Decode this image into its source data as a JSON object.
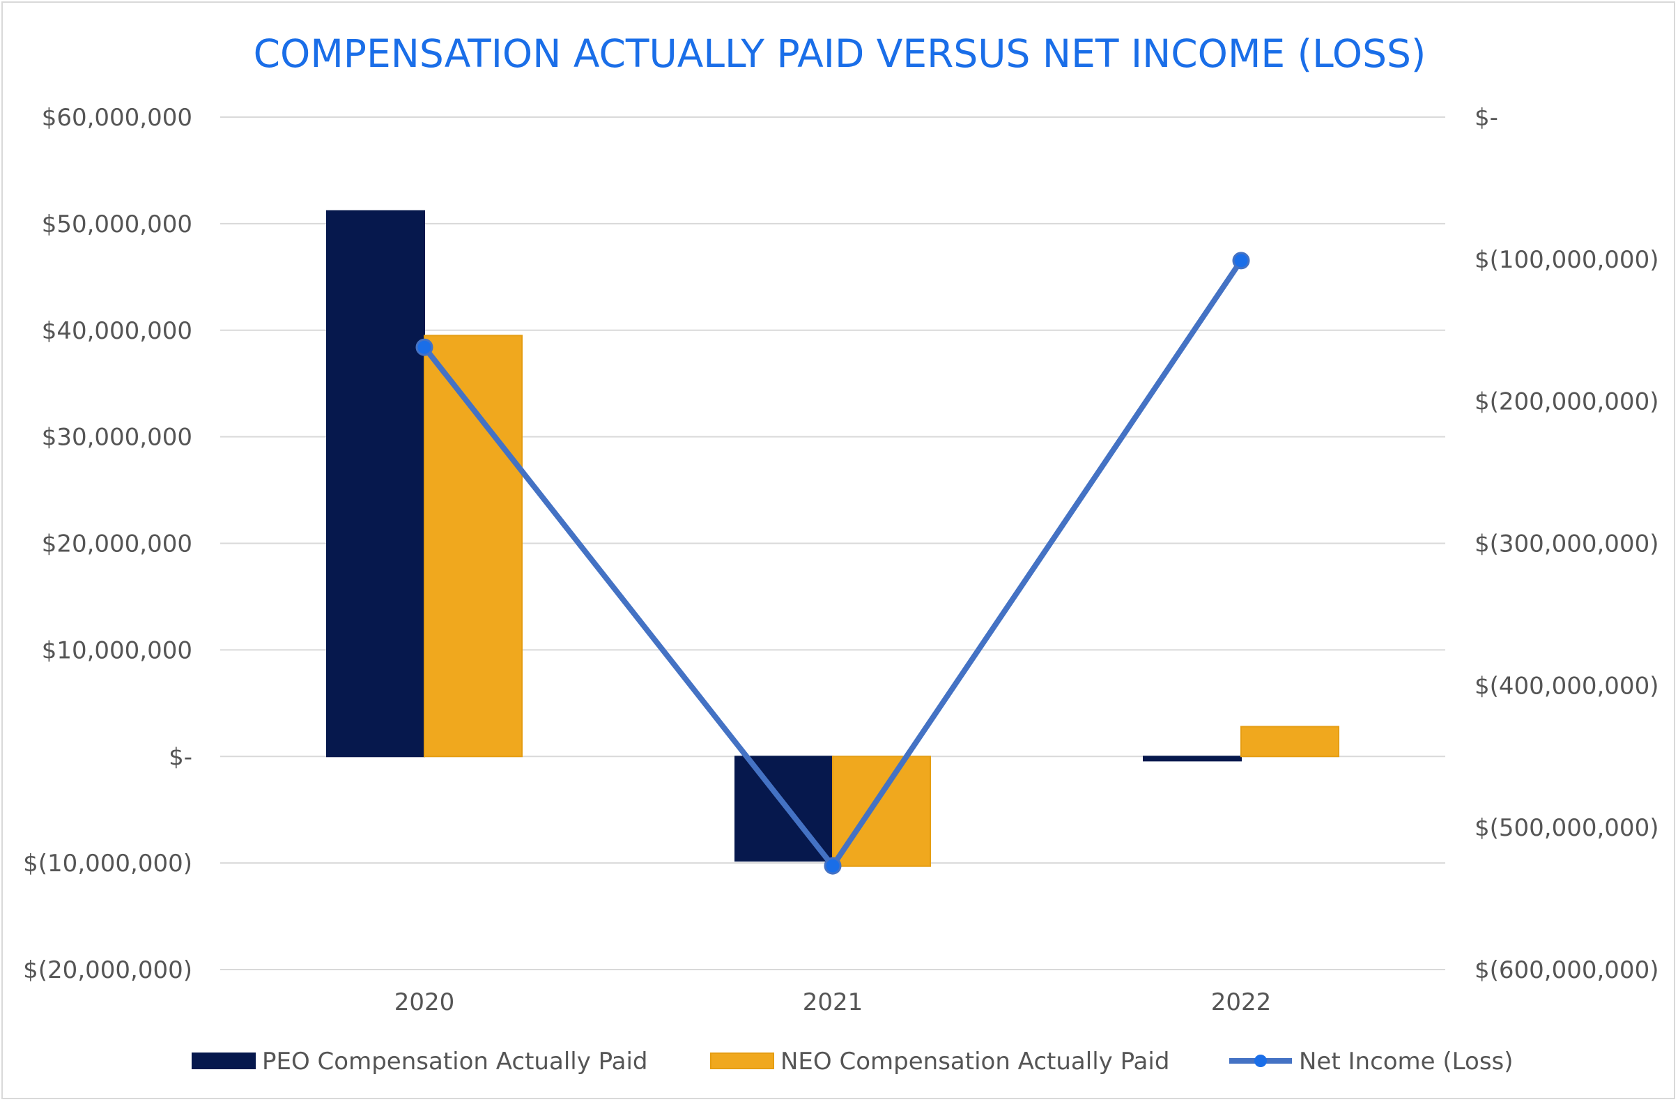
{
  "chart_data": {
    "type": "bar",
    "title": "COMPENSATION ACTUALLY PAID VERSUS NET INCOME (LOSS)",
    "categories": [
      "2020",
      "2021",
      "2022"
    ],
    "series": [
      {
        "name": "PEO Compensation Actually Paid",
        "kind": "bar",
        "axis": "left",
        "color": "#06184d",
        "values": [
          51200000,
          -9800000,
          -400000
        ]
      },
      {
        "name": "NEO Compensation Actually Paid",
        "kind": "bar",
        "axis": "left",
        "color": "#f0a81e",
        "values": [
          39500000,
          -10300000,
          2800000
        ]
      },
      {
        "name": "Net Income (Loss)",
        "kind": "line",
        "axis": "right",
        "color": "#4472c4",
        "marker_color": "#1a6ee8",
        "values": [
          -162000000,
          -527000000,
          -101000000
        ]
      }
    ],
    "y_left": {
      "min": -20000000,
      "max": 60000000,
      "ticks": [
        60000000,
        50000000,
        40000000,
        30000000,
        20000000,
        10000000,
        0,
        -10000000,
        -20000000
      ],
      "tick_labels": [
        "$60,000,000",
        "$50,000,000",
        "$40,000,000",
        "$30,000,000",
        "$20,000,000",
        "$10,000,000",
        "$-",
        "$(10,000,000)",
        "$(20,000,000)"
      ]
    },
    "y_right": {
      "min": -600000000,
      "max": 0,
      "ticks": [
        0,
        -100000000,
        -200000000,
        -300000000,
        -400000000,
        -500000000,
        -600000000
      ],
      "tick_labels": [
        "$-",
        "$(100,000,000)",
        "$(200,000,000)",
        "$(300,000,000)",
        "$(400,000,000)",
        "$(500,000,000)",
        "$(600,000,000)"
      ]
    },
    "grid": true,
    "legend": "bottom",
    "colors": {
      "title": "#1a6ee8",
      "grid": "#d9d9d9",
      "axis_text": "#555555"
    }
  }
}
